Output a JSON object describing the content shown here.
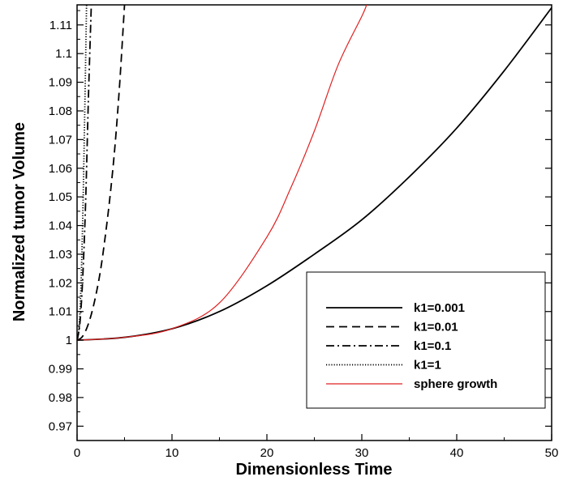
{
  "chart_data": {
    "type": "line",
    "title": "",
    "xlabel": "Dimensionless Time",
    "ylabel": "Normalized tumor Volume",
    "xlim": [
      0,
      50
    ],
    "ylim": [
      0.965,
      1.117
    ],
    "grid": false,
    "x_ticks": [
      0,
      10,
      20,
      30,
      40,
      50
    ],
    "x_tick_labels": [
      "0",
      "10",
      "20",
      "30",
      "40",
      "50"
    ],
    "y_ticks": [
      0.97,
      0.98,
      0.99,
      1.0,
      1.01,
      1.02,
      1.03,
      1.04,
      1.05,
      1.06,
      1.07,
      1.08,
      1.09,
      1.1,
      1.11
    ],
    "y_tick_labels": [
      "0.97",
      "0.98",
      "0.99",
      "1",
      "1.01",
      "1.02",
      "1.03",
      "1.04",
      "1.05",
      "1.06",
      "1.07",
      "1.08",
      "1.09",
      "1.1",
      "1.11"
    ],
    "legend_position": "bottom-right",
    "series": [
      {
        "name": "k1=0.001",
        "color": "#000000",
        "dash": "solid",
        "x": [
          0,
          5,
          10,
          15,
          20,
          25,
          30,
          35,
          40,
          45,
          50
        ],
        "y": [
          1.0,
          1.001,
          1.004,
          1.01,
          1.019,
          1.03,
          1.042,
          1.057,
          1.074,
          1.094,
          1.116
        ]
      },
      {
        "name": "k1=0.01",
        "color": "#000000",
        "dash": "dashed",
        "x": [
          0,
          0.5,
          1,
          1.5,
          2,
          2.5,
          3,
          3.5,
          4,
          4.5,
          5
        ],
        "y": [
          1.0,
          1.001,
          1.004,
          1.009,
          1.016,
          1.025,
          1.037,
          1.051,
          1.068,
          1.09,
          1.117
        ]
      },
      {
        "name": "k1=0.1",
        "color": "#000000",
        "dash": "dashdot",
        "x": [
          0,
          0.3,
          0.6,
          0.9,
          1.2,
          1.5
        ],
        "y": [
          1.0,
          1.006,
          1.022,
          1.048,
          1.085,
          1.117
        ]
      },
      {
        "name": "k1=1",
        "color": "#000000",
        "dash": "dotted",
        "x": [
          0,
          0.2,
          0.4,
          0.6,
          0.8,
          1.0
        ],
        "y": [
          1.0,
          1.004,
          1.018,
          1.043,
          1.078,
          1.117
        ]
      },
      {
        "name": "sphere growth",
        "color": "#e02020",
        "dash": "solid",
        "x": [
          0,
          5,
          10,
          15,
          20,
          22.5,
          25,
          27.5,
          30,
          30.5
        ],
        "y": [
          1.0,
          1.001,
          1.004,
          1.013,
          1.036,
          1.053,
          1.073,
          1.096,
          1.113,
          1.117
        ]
      }
    ]
  }
}
